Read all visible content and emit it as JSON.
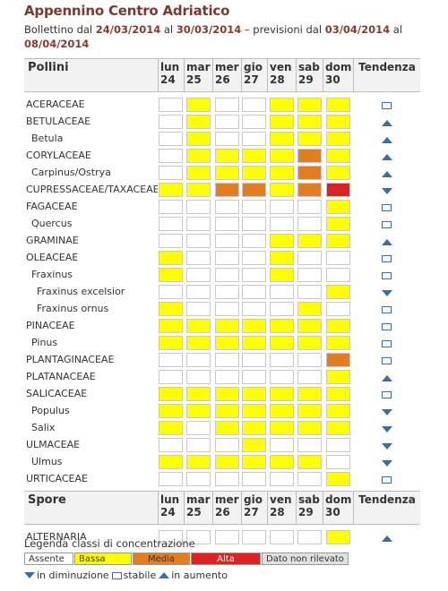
{
  "header": {
    "title": "Appennino Centro Adriatico",
    "bulletin_prefix": "Bollettino dal",
    "bulletin_from": "24/03/2014",
    "bulletin_to_word": "al",
    "bulletin_to": "30/03/2014",
    "forecast_prefix": "– previsioni dal",
    "forecast_from": "03/04/2014",
    "forecast_to_word": "al",
    "forecast_to": "08/04/2014"
  },
  "colors": {
    "absent": "#ffffff",
    "low": "#ffff00",
    "medium": "#e47c20",
    "high": "#dd2222",
    "na": "#e0e0e0",
    "trend": "#3a6ea5"
  },
  "pollen_table": {
    "title": "Pollini",
    "trend_header": "Tendenza",
    "days": [
      {
        "name": "lun",
        "num": "24"
      },
      {
        "name": "mar",
        "num": "25"
      },
      {
        "name": "mer",
        "num": "26"
      },
      {
        "name": "gio",
        "num": "27"
      },
      {
        "name": "ven",
        "num": "28"
      },
      {
        "name": "sab",
        "num": "29"
      },
      {
        "name": "dom",
        "num": "30"
      }
    ],
    "rows": [
      {
        "name": "ACERACEAE",
        "level": 1,
        "values": [
          "A",
          "B",
          "A",
          "A",
          "B",
          "B",
          "B"
        ],
        "trend": "stable"
      },
      {
        "name": "BETULACEAE",
        "level": 1,
        "values": [
          "A",
          "B",
          "A",
          "A",
          "B",
          "B",
          "B"
        ],
        "trend": "up"
      },
      {
        "name": "Betula",
        "level": 2,
        "values": [
          "A",
          "B",
          "A",
          "A",
          "B",
          "B",
          "B"
        ],
        "trend": "up"
      },
      {
        "name": "CORYLACEAE",
        "level": 1,
        "values": [
          "A",
          "B",
          "B",
          "B",
          "B",
          "M",
          "B"
        ],
        "trend": "up"
      },
      {
        "name": "Carpinus/Ostrya",
        "level": 2,
        "values": [
          "A",
          "B",
          "B",
          "B",
          "B",
          "M",
          "B"
        ],
        "trend": "up"
      },
      {
        "name": "CUPRESSACEAE/TAXACEAE",
        "level": 1,
        "values": [
          "B",
          "B",
          "M",
          "M",
          "B",
          "M",
          "H"
        ],
        "trend": "down"
      },
      {
        "name": "FAGACEAE",
        "level": 1,
        "values": [
          "A",
          "A",
          "A",
          "A",
          "A",
          "A",
          "B"
        ],
        "trend": "stable"
      },
      {
        "name": "Quercus",
        "level": 2,
        "values": [
          "A",
          "A",
          "A",
          "A",
          "A",
          "A",
          "B"
        ],
        "trend": "stable"
      },
      {
        "name": "GRAMINAE",
        "level": 1,
        "values": [
          "A",
          "A",
          "A",
          "A",
          "B",
          "B",
          "B"
        ],
        "trend": "up"
      },
      {
        "name": "OLEACEAE",
        "level": 1,
        "values": [
          "B",
          "A",
          "A",
          "A",
          "B",
          "A",
          "A"
        ],
        "trend": "stable"
      },
      {
        "name": "Fraxinus",
        "level": 2,
        "values": [
          "B",
          "A",
          "A",
          "A",
          "B",
          "A",
          "A"
        ],
        "trend": "stable"
      },
      {
        "name": "Fraxinus excelsior",
        "level": 3,
        "values": [
          "A",
          "A",
          "A",
          "A",
          "A",
          "A",
          "B"
        ],
        "trend": "down"
      },
      {
        "name": "Fraxinus ornus",
        "level": 3,
        "values": [
          "B",
          "A",
          "A",
          "A",
          "A",
          "B",
          "A"
        ],
        "trend": "stable"
      },
      {
        "name": "PINACEAE",
        "level": 1,
        "values": [
          "B",
          "B",
          "B",
          "B",
          "B",
          "B",
          "B"
        ],
        "trend": "stable"
      },
      {
        "name": "Pinus",
        "level": 2,
        "values": [
          "B",
          "B",
          "B",
          "B",
          "B",
          "B",
          "B"
        ],
        "trend": "stable"
      },
      {
        "name": "PLANTAGINACEAE",
        "level": 1,
        "values": [
          "A",
          "A",
          "A",
          "A",
          "A",
          "A",
          "M"
        ],
        "trend": "stable"
      },
      {
        "name": "PLATANACEAE",
        "level": 1,
        "values": [
          "A",
          "A",
          "A",
          "A",
          "A",
          "A",
          "B"
        ],
        "trend": "up"
      },
      {
        "name": "SALICACEAE",
        "level": 1,
        "values": [
          "B",
          "B",
          "B",
          "B",
          "B",
          "B",
          "B"
        ],
        "trend": "stable"
      },
      {
        "name": "Populus",
        "level": 2,
        "values": [
          "B",
          "B",
          "B",
          "B",
          "B",
          "B",
          "B"
        ],
        "trend": "down"
      },
      {
        "name": "Salix",
        "level": 2,
        "values": [
          "B",
          "A",
          "B",
          "B",
          "B",
          "B",
          "B"
        ],
        "trend": "down"
      },
      {
        "name": "ULMACEAE",
        "level": 1,
        "values": [
          "A",
          "A",
          "A",
          "B",
          "A",
          "A",
          "A"
        ],
        "trend": "down"
      },
      {
        "name": "Ulmus",
        "level": 2,
        "values": [
          "B",
          "B",
          "B",
          "B",
          "B",
          "B",
          "A"
        ],
        "trend": "down"
      },
      {
        "name": "URTICACEAE",
        "level": 1,
        "values": [
          "A",
          "A",
          "A",
          "A",
          "A",
          "A",
          "B"
        ],
        "trend": "stable"
      }
    ]
  },
  "spore_table": {
    "title": "Spore",
    "trend_header": "Tendenza",
    "rows": [
      {
        "name": "ALTERNARIA",
        "level": 1,
        "values": [
          "A",
          "A",
          "A",
          "A",
          "A",
          "A",
          "B"
        ],
        "trend": "up"
      }
    ]
  },
  "legend": {
    "title": "Legenda classi di concentrazione",
    "classes": [
      {
        "code": "A",
        "label": "Assente"
      },
      {
        "code": "B",
        "label": "Bassa"
      },
      {
        "code": "M",
        "label": "Media"
      },
      {
        "code": "H",
        "label": "Alta"
      },
      {
        "code": "N",
        "label": "Dato non rilevato"
      }
    ],
    "trends": [
      {
        "code": "down",
        "label": "in diminuzione"
      },
      {
        "code": "stable",
        "label": "stabile"
      },
      {
        "code": "up",
        "label": "in aumento"
      }
    ]
  }
}
